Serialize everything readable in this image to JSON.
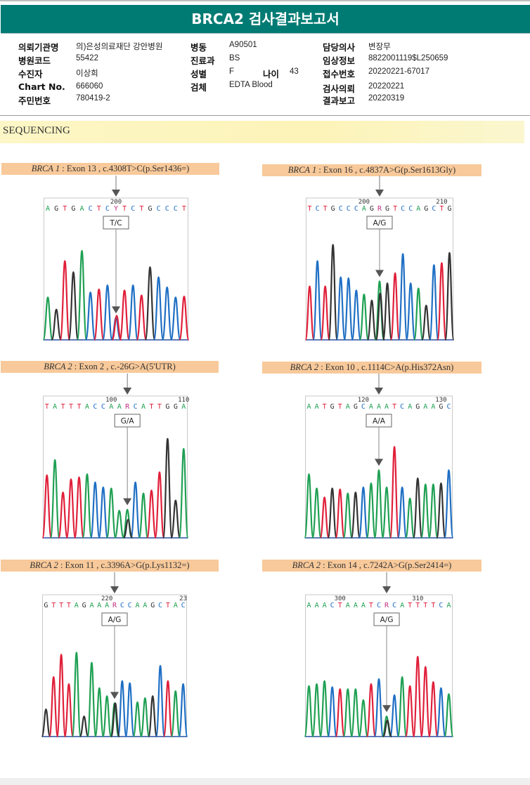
{
  "header": {
    "title": "BRCA2 검사결과보고서",
    "title_bg": "#007b74"
  },
  "info": {
    "col1": [
      {
        "label": "의뢰기관명",
        "value": "의)은성의료재단 강안병원"
      },
      {
        "label": "병원코드",
        "value": "55422"
      },
      {
        "label": "수진자",
        "value": "이상희"
      },
      {
        "label": "Chart No.",
        "value": "666060"
      },
      {
        "label": "주민번호",
        "value": "780419-2"
      }
    ],
    "col2": [
      {
        "label": "병동",
        "value": "A90501"
      },
      {
        "label": "진료과",
        "value": "BS"
      },
      {
        "label": "성별",
        "value": "F"
      },
      {
        "label": "검체",
        "value": "EDTA Blood"
      }
    ],
    "age": {
      "label": "나이",
      "value": "43"
    },
    "col3": [
      {
        "label": "담당의사",
        "value": "변장무"
      },
      {
        "label": "임상정보",
        "value": "8822001119$L250659"
      },
      {
        "label": "접수번호",
        "value": "20220221-67017"
      },
      {
        "label": "검사의뢰",
        "value": "20220221"
      },
      {
        "label": "결과보고",
        "value": "20220319"
      }
    ]
  },
  "section": {
    "title": "SEQUENCING"
  },
  "base_colors": {
    "A": "#1fa053",
    "C": "#1f6fc4",
    "G": "#333333",
    "T": "#e0203a",
    "R": "#c0307f",
    "Y": "#c0307f"
  },
  "variants": [
    {
      "gene": "BRCA 1",
      "detail": " : Exon 13 , c.4308T>C(p.Ser1436=)",
      "sequence": "AGTGACTCYTCTGCCCT",
      "variant_index": 8,
      "position_labels": [
        {
          "text": "200",
          "index": 8
        }
      ],
      "genotype": "T/C",
      "peaks": [
        {
          "b": "A",
          "h": 0.42
        },
        {
          "b": "G",
          "h": 0.3
        },
        {
          "b": "T",
          "h": 0.78
        },
        {
          "b": "G",
          "h": 0.67
        },
        {
          "b": "A",
          "h": 0.88
        },
        {
          "b": "C",
          "h": 0.47
        },
        {
          "b": "T",
          "h": 0.5
        },
        {
          "b": "C",
          "h": 0.54
        },
        {
          "b": "C",
          "h": 0.22
        },
        {
          "b": "T",
          "h": 0.49
        },
        {
          "b": "C",
          "h": 0.54
        },
        {
          "b": "T",
          "h": 0.44
        },
        {
          "b": "G",
          "h": 0.72
        },
        {
          "b": "C",
          "h": 0.62
        },
        {
          "b": "C",
          "h": 0.52
        },
        {
          "b": "C",
          "h": 0.42
        },
        {
          "b": "T",
          "h": 0.43
        }
      ],
      "secondary": [
        {
          "b": "T",
          "h": 0.24,
          "index": 8
        }
      ]
    },
    {
      "gene": "BRCA 1",
      "detail": " : Exon 16 , c.4837A>G(p.Ser1613Gly)",
      "sequence": "TCTGCCCAGRGTCCAGCTG",
      "variant_index": 9,
      "position_labels": [
        {
          "text": "200",
          "index": 7
        },
        {
          "text": "210",
          "index": 17
        }
      ],
      "genotype": "A/G",
      "peaks": [
        {
          "b": "T",
          "h": 0.53
        },
        {
          "b": "C",
          "h": 0.78
        },
        {
          "b": "T",
          "h": 0.53
        },
        {
          "b": "G",
          "h": 0.94
        },
        {
          "b": "C",
          "h": 0.62
        },
        {
          "b": "C",
          "h": 0.61
        },
        {
          "b": "C",
          "h": 0.49
        },
        {
          "b": "A",
          "h": 0.45
        },
        {
          "b": "G",
          "h": 0.39
        },
        {
          "b": "A",
          "h": 0.58
        },
        {
          "b": "G",
          "h": 0.56
        },
        {
          "b": "T",
          "h": 0.66
        },
        {
          "b": "C",
          "h": 0.85
        },
        {
          "b": "C",
          "h": 0.56
        },
        {
          "b": "A",
          "h": 0.51
        },
        {
          "b": "G",
          "h": 0.34
        },
        {
          "b": "C",
          "h": 0.74
        },
        {
          "b": "T",
          "h": 0.76
        },
        {
          "b": "G",
          "h": 0.86
        }
      ],
      "secondary": [
        {
          "b": "G",
          "h": 0.46,
          "index": 9
        }
      ]
    },
    {
      "gene": "BRCA 2",
      "detail": " : Exon 2 , c.-26G>A(5'UTR)",
      "sequence": "TATTTACCAARCATTGGA",
      "variant_index": 10,
      "position_labels": [
        {
          "text": "100",
          "index": 8
        },
        {
          "text": "110",
          "index": 17
        }
      ],
      "genotype": "G/A",
      "peaks": [
        {
          "b": "T",
          "h": 0.62
        },
        {
          "b": "A",
          "h": 0.77
        },
        {
          "b": "T",
          "h": 0.45
        },
        {
          "b": "T",
          "h": 0.58
        },
        {
          "b": "T",
          "h": 0.6
        },
        {
          "b": "A",
          "h": 0.63
        },
        {
          "b": "C",
          "h": 0.55
        },
        {
          "b": "C",
          "h": 0.5
        },
        {
          "b": "A",
          "h": 0.49
        },
        {
          "b": "A",
          "h": 0.27
        },
        {
          "b": "A",
          "h": 0.28
        },
        {
          "b": "C",
          "h": 0.55
        },
        {
          "b": "A",
          "h": 0.44
        },
        {
          "b": "T",
          "h": 0.47
        },
        {
          "b": "T",
          "h": 0.65
        },
        {
          "b": "G",
          "h": 0.98
        },
        {
          "b": "G",
          "h": 0.37
        },
        {
          "b": "A",
          "h": 0.88
        }
      ],
      "secondary": [
        {
          "b": "G",
          "h": 0.18,
          "index": 10
        }
      ]
    },
    {
      "gene": "BRCA 2",
      "detail": " : Exon 10 , c.1114C>A(p.His372Asn)",
      "sequence": "AATGTAGCAAATCAGAAGC",
      "variant_index": 9,
      "position_labels": [
        {
          "text": "120",
          "index": 7
        },
        {
          "text": "130",
          "index": 17
        }
      ],
      "genotype": "A/A",
      "peaks": [
        {
          "b": "A",
          "h": 0.63
        },
        {
          "b": "A",
          "h": 0.49
        },
        {
          "b": "T",
          "h": 0.4
        },
        {
          "b": "G",
          "h": 0.49
        },
        {
          "b": "T",
          "h": 0.48
        },
        {
          "b": "A",
          "h": 0.44
        },
        {
          "b": "G",
          "h": 0.45
        },
        {
          "b": "C",
          "h": 0.5
        },
        {
          "b": "A",
          "h": 0.54
        },
        {
          "b": "A",
          "h": 0.67
        },
        {
          "b": "A",
          "h": 0.5
        },
        {
          "b": "T",
          "h": 0.9
        },
        {
          "b": "C",
          "h": 0.5
        },
        {
          "b": "A",
          "h": 0.39
        },
        {
          "b": "G",
          "h": 0.59
        },
        {
          "b": "A",
          "h": 0.53
        },
        {
          "b": "A",
          "h": 0.53
        },
        {
          "b": "G",
          "h": 0.54
        },
        {
          "b": "C",
          "h": 0.67
        }
      ],
      "secondary": []
    },
    {
      "gene": "BRCA 2",
      "detail": " : Exon 11 , c.3396A>G(p.Lys1132=)",
      "sequence": "GTTTAGAAARCCAAGCTAC",
      "variant_index": 9,
      "position_labels": [
        {
          "text": "220",
          "index": 8
        },
        {
          "text": "23",
          "index": 18
        }
      ],
      "genotype": "A/G",
      "peaks": [
        {
          "b": "G",
          "h": 0.27
        },
        {
          "b": "T",
          "h": 0.59
        },
        {
          "b": "T",
          "h": 0.81
        },
        {
          "b": "T",
          "h": 0.52
        },
        {
          "b": "A",
          "h": 0.83
        },
        {
          "b": "G",
          "h": 0.2
        },
        {
          "b": "A",
          "h": 0.73
        },
        {
          "b": "A",
          "h": 0.48
        },
        {
          "b": "A",
          "h": 0.4
        },
        {
          "b": "A",
          "h": 0.33
        },
        {
          "b": "C",
          "h": 0.55
        },
        {
          "b": "C",
          "h": 0.53
        },
        {
          "b": "A",
          "h": 0.34
        },
        {
          "b": "A",
          "h": 0.38
        },
        {
          "b": "G",
          "h": 0.4
        },
        {
          "b": "C",
          "h": 0.7
        },
        {
          "b": "T",
          "h": 0.55
        },
        {
          "b": "A",
          "h": 0.45
        },
        {
          "b": "C",
          "h": 0.52
        }
      ],
      "secondary": [
        {
          "b": "G",
          "h": 0.33,
          "index": 9
        }
      ]
    },
    {
      "gene": "BRCA 2",
      "detail": " : Exon 14 , c.7242A>G(p.Ser2414=)",
      "sequence": "AAACTAAATCRCATTTTCA",
      "variant_index": 10,
      "position_labels": [
        {
          "text": "300",
          "index": 4
        },
        {
          "text": "310",
          "index": 14
        }
      ],
      "genotype": "A/G",
      "peaks": [
        {
          "b": "A",
          "h": 0.5
        },
        {
          "b": "A",
          "h": 0.52
        },
        {
          "b": "A",
          "h": 0.55
        },
        {
          "b": "C",
          "h": 0.49
        },
        {
          "b": "T",
          "h": 0.47
        },
        {
          "b": "A",
          "h": 0.47
        },
        {
          "b": "A",
          "h": 0.47
        },
        {
          "b": "A",
          "h": 0.36
        },
        {
          "b": "T",
          "h": 0.52
        },
        {
          "b": "C",
          "h": 0.57
        },
        {
          "b": "A",
          "h": 0.2
        },
        {
          "b": "C",
          "h": 0.41
        },
        {
          "b": "A",
          "h": 0.59
        },
        {
          "b": "T",
          "h": 0.5
        },
        {
          "b": "T",
          "h": 0.79
        },
        {
          "b": "T",
          "h": 0.69
        },
        {
          "b": "T",
          "h": 0.54
        },
        {
          "b": "C",
          "h": 0.48
        },
        {
          "b": "A",
          "h": 0.42
        }
      ],
      "secondary": [
        {
          "b": "G",
          "h": 0.16,
          "index": 10
        }
      ]
    }
  ]
}
